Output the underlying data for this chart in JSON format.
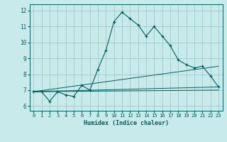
{
  "xlabel": "Humidex (Indice chaleur)",
  "ylabel": "",
  "background_color": "#c8eaea",
  "grid_color": "#a0cccc",
  "line_color": "#006060",
  "xlim": [
    -0.5,
    23.5
  ],
  "ylim": [
    5.7,
    12.4
  ],
  "xticks": [
    0,
    1,
    2,
    3,
    4,
    5,
    6,
    7,
    8,
    9,
    10,
    11,
    12,
    13,
    14,
    15,
    16,
    17,
    18,
    19,
    20,
    21,
    22,
    23
  ],
  "yticks": [
    6,
    7,
    8,
    9,
    10,
    11,
    12
  ],
  "series": [
    {
      "x": [
        0,
        1,
        2,
        3,
        4,
        5,
        6,
        7,
        8,
        9,
        10,
        11,
        12,
        13,
        14,
        15,
        16,
        17,
        18,
        19,
        20,
        21,
        22,
        23
      ],
      "y": [
        6.9,
        6.9,
        6.3,
        6.9,
        6.7,
        6.6,
        7.3,
        7.0,
        8.3,
        9.5,
        11.3,
        11.9,
        11.5,
        11.1,
        10.4,
        11.0,
        10.4,
        9.8,
        8.9,
        8.6,
        8.4,
        8.5,
        7.9,
        7.2
      ],
      "marker": true
    },
    {
      "x": [
        0,
        23
      ],
      "y": [
        6.9,
        7.0
      ],
      "marker": false
    },
    {
      "x": [
        0,
        23
      ],
      "y": [
        6.9,
        7.2
      ],
      "marker": false
    },
    {
      "x": [
        0,
        23
      ],
      "y": [
        6.9,
        8.5
      ],
      "marker": false
    }
  ]
}
